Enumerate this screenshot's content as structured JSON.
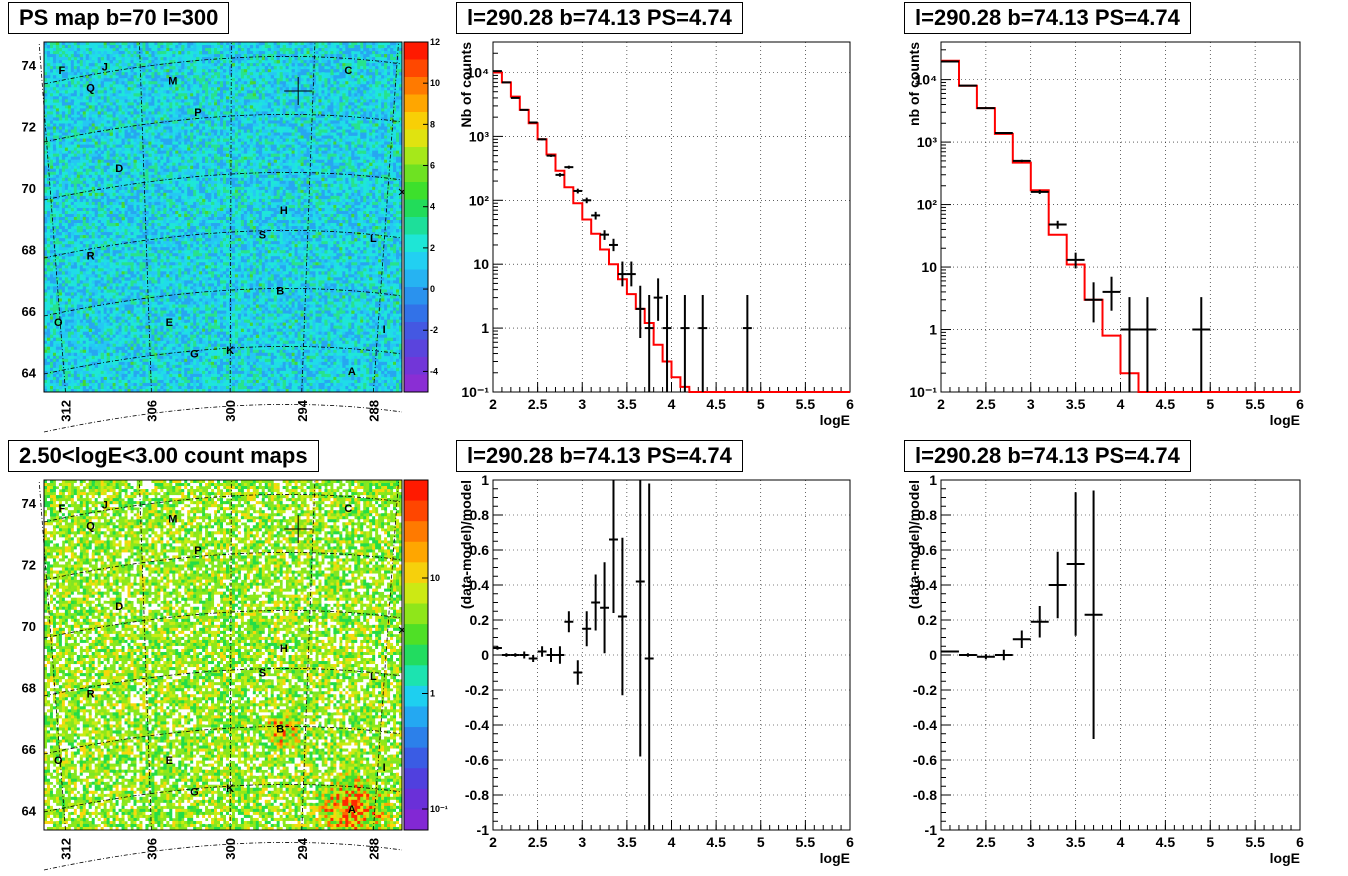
{
  "panels": {
    "map1_title": "PS map b=70 l=300",
    "map2_title": "2.50<logE<3.00 count maps",
    "spec1_title": "l=290.28 b=74.13 PS=4.74",
    "spec2_title": "l=290.28 b=74.13 PS=4.74",
    "res1_title": "l=290.28 b=74.13 PS=4.74",
    "res2_title": "l=290.28 b=74.13 PS=4.74"
  },
  "colors": {
    "data": "#000000",
    "model": "#ff0000",
    "grid": "#000000"
  },
  "chart_data": [
    {
      "id": "ps_map",
      "type": "heatmap",
      "title": "PS map b=70 l=300",
      "x_ticks": [
        "312",
        "306",
        "300",
        "294",
        "288"
      ],
      "y_ticks": [
        "74",
        "72",
        "70",
        "68",
        "66",
        "64"
      ],
      "colorbar_ticks": [
        "12",
        "10",
        "8",
        "6",
        "4",
        "2",
        "0",
        "-2",
        "-4"
      ],
      "zlim": [
        -5,
        12
      ],
      "source_labels": [
        "F",
        "J",
        "M",
        "C",
        "Q",
        "P",
        "D",
        "H",
        "S",
        "L",
        "R",
        "B",
        "O",
        "E",
        "I",
        "K",
        "G",
        "A"
      ]
    },
    {
      "id": "count_map",
      "type": "heatmap",
      "title": "2.50<logE<3.00 count maps",
      "x_ticks": [
        "312",
        "306",
        "300",
        "294",
        "288"
      ],
      "y_ticks": [
        "74",
        "72",
        "70",
        "68",
        "66",
        "64"
      ],
      "colorbar_ticks": [
        "10",
        "1",
        "10⁻¹"
      ],
      "log_z": true,
      "source_labels": [
        "F",
        "J",
        "M",
        "C",
        "Q",
        "P",
        "D",
        "H",
        "S",
        "L",
        "R",
        "B",
        "O",
        "E",
        "I",
        "K",
        "G",
        "A"
      ]
    },
    {
      "id": "spectrum_1",
      "type": "line",
      "title": "l=290.28 b=74.13 PS=4.74",
      "xlabel": "logE",
      "ylabel": "Nb of counts",
      "xlim": [
        2,
        6
      ],
      "ylim": [
        0.1,
        30000
      ],
      "log_y": true,
      "x_ticks": [
        "2",
        "2.5",
        "3",
        "3.5",
        "4",
        "4.5",
        "5",
        "5.5",
        "6"
      ],
      "y_ticks": [
        "10⁻¹",
        "1",
        "10",
        "10²",
        "10³",
        "10⁴"
      ],
      "grid": true,
      "series": [
        {
          "kind": "model",
          "bin_width": 0.1,
          "x": [
            2.0,
            2.1,
            2.2,
            2.3,
            2.4,
            2.5,
            2.6,
            2.7,
            2.8,
            2.9,
            3.0,
            3.1,
            3.2,
            3.3,
            3.4,
            3.5,
            3.6,
            3.7,
            3.8,
            3.9,
            4.0,
            4.1,
            4.2,
            4.3,
            4.4,
            4.5,
            4.6,
            4.7,
            4.8,
            4.9,
            5.0,
            5.1,
            5.2,
            5.3,
            5.4,
            5.5,
            5.6,
            5.7,
            5.8,
            5.9
          ],
          "y": [
            10000,
            7000,
            4200,
            2600,
            1600,
            900,
            520,
            290,
            160,
            90,
            50,
            30,
            17,
            10,
            5.8,
            3.4,
            2,
            1.2,
            0.55,
            0.3,
            0.17,
            0.12,
            0.1,
            0.1,
            0.1,
            0.1,
            0.1,
            0.1,
            0.1,
            0.1,
            0.1,
            0.1,
            0.1,
            0.1,
            0.1,
            0.1,
            0.1,
            0.1,
            0.1,
            0.1
          ]
        },
        {
          "kind": "data",
          "x": [
            2.05,
            2.15,
            2.25,
            2.35,
            2.45,
            2.55,
            2.65,
            2.75,
            2.85,
            2.95,
            3.05,
            3.15,
            3.25,
            3.35,
            3.45,
            3.55,
            3.65,
            3.75,
            3.85,
            3.95,
            4.15,
            4.35,
            4.85
          ],
          "y": [
            10500,
            7000,
            4000,
            2600,
            1650,
            900,
            500,
            250,
            330,
            140,
            100,
            58,
            29,
            20,
            7,
            7,
            2,
            1,
            3,
            1,
            1,
            1,
            1
          ],
          "err_low": [
            100,
            80,
            60,
            50,
            40,
            30,
            22,
            16,
            18,
            12,
            10,
            8,
            5,
            4,
            2.5,
            2.5,
            1.3,
            1,
            1.7,
            1,
            1,
            1,
            1
          ],
          "err_high": [
            100,
            80,
            60,
            50,
            40,
            30,
            22,
            16,
            18,
            12,
            10,
            8,
            5,
            5,
            4,
            4,
            2.6,
            2.3,
            3,
            2.3,
            2.3,
            2.3,
            2.3
          ]
        }
      ]
    },
    {
      "id": "spectrum_2",
      "type": "line",
      "title": "l=290.28 b=74.13 PS=4.74",
      "xlabel": "logE",
      "ylabel": "nb of counts",
      "xlim": [
        2,
        6
      ],
      "ylim": [
        0.1,
        40000
      ],
      "log_y": true,
      "x_ticks": [
        "2",
        "2.5",
        "3",
        "3.5",
        "4",
        "4.5",
        "5",
        "5.5",
        "6"
      ],
      "y_ticks": [
        "10⁻¹",
        "1",
        "10",
        "10²",
        "10³",
        "10⁴"
      ],
      "grid": true,
      "series": [
        {
          "kind": "model",
          "bin_width": 0.2,
          "x": [
            2.0,
            2.2,
            2.4,
            2.6,
            2.8,
            3.0,
            3.2,
            3.4,
            3.6,
            3.8,
            4.0,
            4.2,
            4.4,
            4.6,
            4.8,
            5.0,
            5.2,
            5.4,
            5.6,
            5.8
          ],
          "y": [
            20000,
            8000,
            3500,
            1350,
            470,
            170,
            33,
            11,
            3,
            0.8,
            0.2,
            0.1,
            0.1,
            0.1,
            0.1,
            0.1,
            0.1,
            0.1,
            0.1,
            0.1
          ]
        },
        {
          "kind": "data",
          "x": [
            2.1,
            2.3,
            2.5,
            2.7,
            2.9,
            3.1,
            3.3,
            3.5,
            3.7,
            3.9,
            4.1,
            4.3,
            4.9
          ],
          "y": [
            19500,
            8000,
            3500,
            1400,
            500,
            160,
            48,
            13,
            3,
            4,
            1,
            1,
            1
          ],
          "err_low": [
            140,
            90,
            60,
            37,
            22,
            12,
            7,
            3.5,
            1.7,
            2,
            1,
            1,
            1
          ],
          "err_high": [
            140,
            90,
            60,
            37,
            22,
            12,
            7,
            4,
            2.7,
            3,
            2.3,
            2.3,
            2.3
          ]
        }
      ]
    },
    {
      "id": "residual_1",
      "type": "scatter",
      "title": "l=290.28 b=74.13 PS=4.74",
      "xlabel": "logE",
      "ylabel": "(data-model)/model",
      "xlim": [
        2,
        6
      ],
      "ylim": [
        -1,
        1
      ],
      "x_ticks": [
        "2",
        "2.5",
        "3",
        "3.5",
        "4",
        "4.5",
        "5",
        "5.5",
        "6"
      ],
      "y_ticks": [
        "1",
        "0.8",
        "0.6",
        "0.4",
        "0.2",
        "0",
        "-0.2",
        "-0.4",
        "-0.6",
        "-0.8",
        "-1"
      ],
      "grid": true,
      "series": [
        {
          "kind": "data",
          "bin_width": 0.1,
          "x": [
            2.05,
            2.15,
            2.25,
            2.35,
            2.45,
            2.55,
            2.65,
            2.75,
            2.85,
            2.95,
            3.05,
            3.15,
            3.25,
            3.35,
            3.45,
            3.65,
            3.75
          ],
          "y": [
            0.04,
            0.0,
            0.0,
            0.0,
            -0.02,
            0.02,
            0.0,
            0.0,
            0.19,
            -0.1,
            0.15,
            0.3,
            0.27,
            0.66,
            0.22,
            0.42,
            -0.02
          ],
          "err": [
            0.01,
            0.01,
            0.01,
            0.02,
            0.02,
            0.03,
            0.04,
            0.05,
            0.06,
            0.07,
            0.1,
            0.16,
            0.26,
            0.42,
            0.45,
            1.0,
            1.0
          ]
        }
      ]
    },
    {
      "id": "residual_2",
      "type": "scatter",
      "title": "l=290.28 b=74.13 PS=4.74",
      "xlabel": "logE",
      "ylabel": "(data-model)/model",
      "xlim": [
        2,
        6
      ],
      "ylim": [
        -1,
        1
      ],
      "x_ticks": [
        "2",
        "2.5",
        "3",
        "3.5",
        "4",
        "4.5",
        "5",
        "5.5",
        "6"
      ],
      "y_ticks": [
        "1",
        "0.8",
        "0.6",
        "0.4",
        "0.2",
        "0",
        "-0.2",
        "-0.4",
        "-0.6",
        "-0.8",
        "-1"
      ],
      "grid": true,
      "series": [
        {
          "kind": "data",
          "bin_width": 0.2,
          "x": [
            2.1,
            2.3,
            2.5,
            2.7,
            2.9,
            3.1,
            3.3,
            3.5,
            3.7
          ],
          "y": [
            0.02,
            0.0,
            -0.01,
            0.0,
            0.09,
            0.19,
            0.4,
            0.52,
            0.23
          ],
          "err": [
            0.005,
            0.01,
            0.015,
            0.03,
            0.05,
            0.09,
            0.19,
            0.41,
            0.71
          ]
        }
      ]
    }
  ]
}
